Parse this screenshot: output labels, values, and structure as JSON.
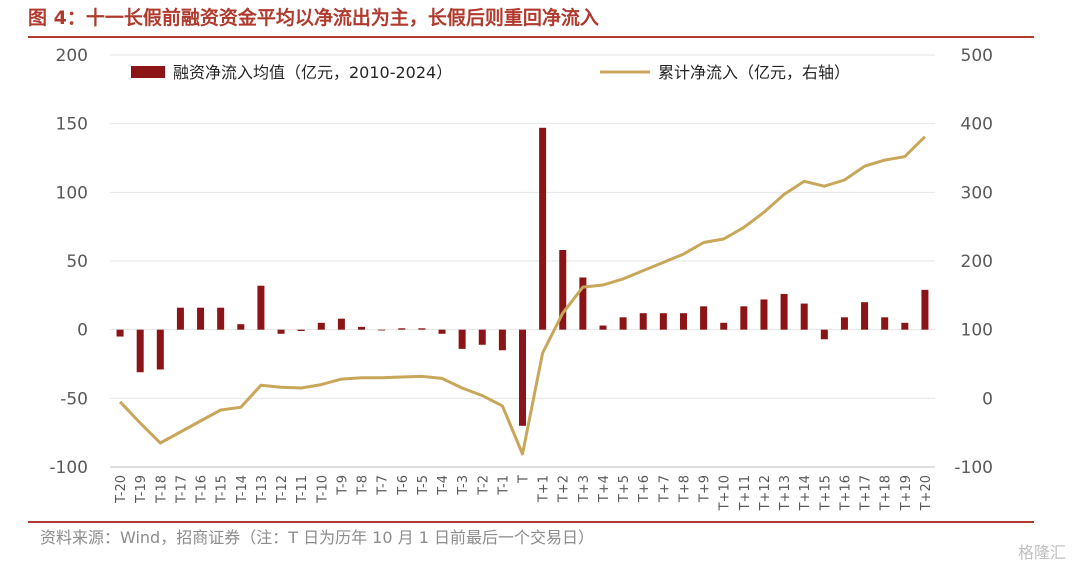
{
  "title": "图 4：十一长假前融资资金平均以净流出为主，长假后则重回净流入",
  "source": "资料来源：Wind，招商证券（注：T 日为历年 10 月 1 日前最后一个交易日）",
  "watermark": "格隆汇",
  "colors": {
    "title": "#b03a2e",
    "bar": "#8b1416",
    "line": "#c8a75a",
    "rule": "#b03a2e",
    "grid": "#e6e6e6",
    "axis_text": "#595959"
  },
  "chart_data": {
    "type": "bar",
    "categories": [
      "T-20",
      "T-19",
      "T-18",
      "T-17",
      "T-16",
      "T-15",
      "T-14",
      "T-13",
      "T-12",
      "T-11",
      "T-10",
      "T-9",
      "T-8",
      "T-7",
      "T-6",
      "T-5",
      "T-4",
      "T-3",
      "T-2",
      "T-1",
      "T",
      "T+1",
      "T+2",
      "T+3",
      "T+4",
      "T+5",
      "T+6",
      "T+7",
      "T+8",
      "T+9",
      "T+10",
      "T+11",
      "T+12",
      "T+13",
      "T+14",
      "T+15",
      "T+16",
      "T+17",
      "T+18",
      "T+19",
      "T+20"
    ],
    "series": [
      {
        "name": "融资净流入均值（亿元，2010-2024）",
        "type": "bar",
        "axis": "left",
        "values": [
          -5,
          -31,
          -29,
          16,
          16,
          16,
          4,
          32,
          -3,
          -1,
          5,
          8,
          2,
          0,
          1,
          1,
          -3,
          -14,
          -11,
          -15,
          -70,
          147,
          58,
          38,
          3,
          9,
          12,
          12,
          12,
          17,
          5,
          17,
          22,
          26,
          19,
          -7,
          9,
          20,
          9,
          5,
          29
        ]
      },
      {
        "name": "累计净流入（亿元，右轴）",
        "type": "line",
        "axis": "right",
        "values": [
          -5,
          -36,
          -65,
          -49,
          -33,
          -17,
          -13,
          19,
          16,
          15,
          20,
          28,
          30,
          30,
          31,
          32,
          29,
          15,
          4,
          -11,
          -81,
          66,
          124,
          162,
          165,
          174,
          186,
          198,
          210,
          227,
          232,
          249,
          271,
          297,
          316,
          309,
          318,
          338,
          347,
          352,
          381
        ]
      }
    ],
    "y_left": {
      "min": -100,
      "max": 200,
      "ticks": [
        -100,
        -50,
        0,
        50,
        100,
        150,
        200
      ]
    },
    "y_right": {
      "min": -100,
      "max": 500,
      "ticks": [
        -100,
        0,
        100,
        200,
        300,
        400,
        500
      ]
    },
    "legend_position": "top",
    "grid": "horizontal"
  }
}
